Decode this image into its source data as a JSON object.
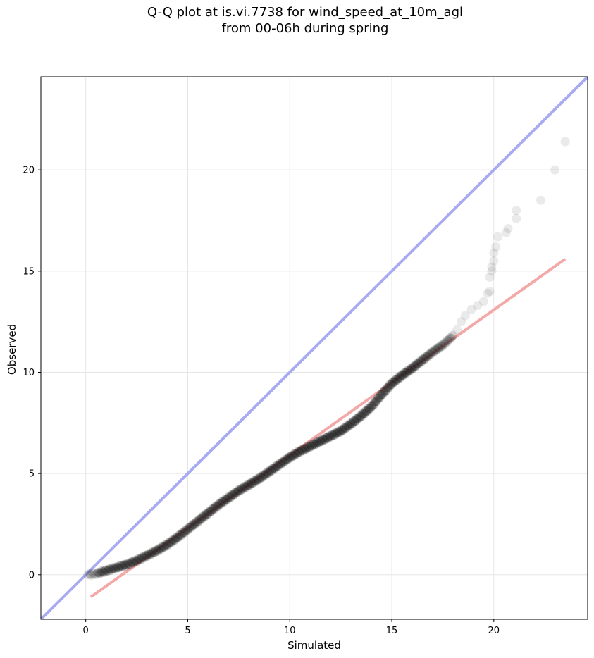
{
  "chart_data": {
    "type": "scatter",
    "title_line1": "Q-Q plot at is.vi.7738 for wind_speed_at_10m_agl",
    "title_line2": "from 00-06h during spring",
    "xlabel": "Simulated",
    "ylabel": "Observed",
    "xlim": [
      -2.2,
      24.6
    ],
    "ylim": [
      -2.2,
      24.6
    ],
    "x_ticks": [
      0,
      5,
      10,
      15,
      20
    ],
    "y_ticks": [
      0,
      5,
      10,
      15,
      20
    ],
    "grid": true,
    "colors": {
      "identity_line": "#a8aaf2",
      "fit_line": "#f4a9a9",
      "points": "#1a1a1a"
    },
    "identity_line": {
      "x": [
        -2.2,
        24.6
      ],
      "y": [
        -2.2,
        24.6
      ]
    },
    "fit_line": {
      "x": [
        0.25,
        23.5
      ],
      "y": [
        -1.1,
        15.6
      ]
    },
    "points_curve": {
      "x": [
        0.1,
        0.5,
        1.0,
        1.5,
        2.0,
        2.5,
        3.0,
        3.5,
        4.0,
        4.5,
        5.0,
        5.5,
        6.0,
        6.5,
        7.0,
        7.5,
        8.0,
        8.5,
        9.0,
        9.5,
        10.0,
        10.5,
        11.0,
        11.5,
        12.0,
        12.5,
        13.0,
        13.5,
        14.0,
        14.5,
        15.0,
        15.5,
        16.0,
        16.5,
        17.0,
        17.5,
        18.0
      ],
      "y": [
        0.0,
        0.05,
        0.2,
        0.35,
        0.5,
        0.7,
        0.95,
        1.2,
        1.5,
        1.85,
        2.25,
        2.65,
        3.05,
        3.45,
        3.8,
        4.15,
        4.45,
        4.75,
        5.1,
        5.45,
        5.8,
        6.1,
        6.35,
        6.6,
        6.85,
        7.1,
        7.45,
        7.85,
        8.3,
        8.9,
        9.45,
        9.85,
        10.2,
        10.6,
        11.0,
        11.35,
        11.8
      ]
    },
    "points_tail": [
      [
        18.2,
        12.1
      ],
      [
        18.4,
        12.5
      ],
      [
        18.6,
        12.8
      ],
      [
        18.9,
        13.1
      ],
      [
        19.2,
        13.3
      ],
      [
        19.5,
        13.5
      ],
      [
        19.7,
        13.9
      ],
      [
        19.8,
        14.0
      ],
      [
        19.8,
        14.7
      ],
      [
        19.9,
        15.0
      ],
      [
        19.9,
        15.2
      ],
      [
        20.0,
        15.5
      ],
      [
        20.0,
        15.9
      ],
      [
        20.1,
        16.2
      ],
      [
        20.2,
        16.7
      ],
      [
        20.6,
        16.9
      ],
      [
        20.7,
        17.1
      ],
      [
        21.1,
        17.6
      ],
      [
        21.1,
        18.0
      ],
      [
        22.3,
        18.5
      ],
      [
        23.0,
        20.0
      ],
      [
        23.5,
        21.4
      ]
    ]
  }
}
